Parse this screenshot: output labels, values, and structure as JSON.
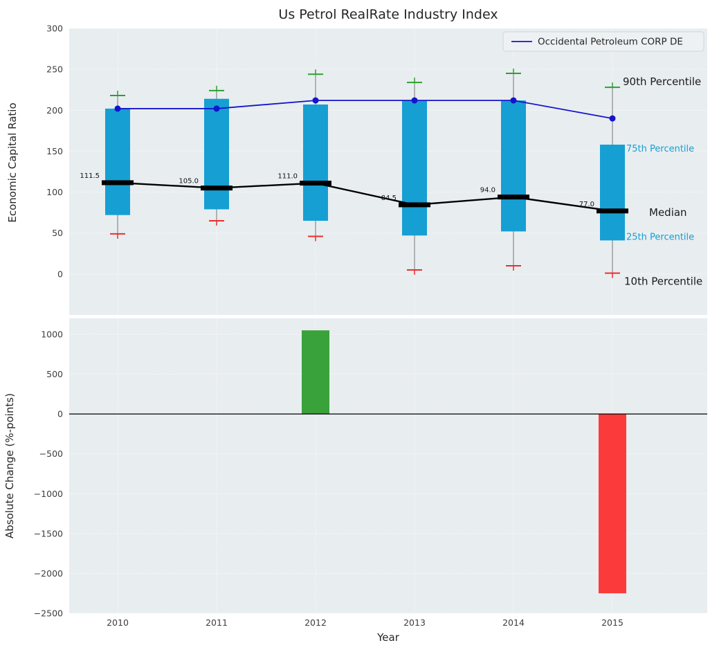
{
  "figure": {
    "panel_background": "#e8edf0",
    "grid_color": "#ffffff",
    "text_color": "#262626"
  },
  "chart_data": [
    {
      "type": "boxplot",
      "title": "Us Petrol RealRate Industry Index",
      "ylabel": "Economic Capital Ratio",
      "ylim": [
        -50,
        300
      ],
      "yticks": [
        300,
        250,
        200,
        150,
        100,
        50,
        0
      ],
      "categories": [
        "2010",
        "2011",
        "2012",
        "2013",
        "2014",
        "2015"
      ],
      "grid": true,
      "legend_position": "upper right",
      "box_color": "#169fd3",
      "whisker_color": "#8a8a8a",
      "cap_top_color": "#2ca02c",
      "cap_bottom_color": "#ee2c2c",
      "median_color": "#000000",
      "boxes": [
        {
          "category": "2010",
          "p10": 49,
          "p25": 72,
          "median": 111.5,
          "p75": 202,
          "p90": 218
        },
        {
          "category": "2011",
          "p10": 65,
          "p25": 79,
          "median": 105.0,
          "p75": 214,
          "p90": 224
        },
        {
          "category": "2012",
          "p10": 46,
          "p25": 65,
          "median": 111.0,
          "p75": 207,
          "p90": 244
        },
        {
          "category": "2013",
          "p10": 5,
          "p25": 47,
          "median": 84.5,
          "p75": 212,
          "p90": 234
        },
        {
          "category": "2014",
          "p10": 10,
          "p25": 52,
          "median": 94.0,
          "p75": 212,
          "p90": 245
        },
        {
          "category": "2015",
          "p10": 1,
          "p25": 41,
          "median": 77.0,
          "p75": 158,
          "p90": 228
        }
      ],
      "series": [
        {
          "name": "Occidental Petroleum CORP DE",
          "color": "#1414cc",
          "values": [
            202,
            202,
            212,
            212,
            212,
            190
          ]
        }
      ],
      "percentile_annotations": [
        {
          "text": "90th Percentile",
          "stat": "p90",
          "color": "#1a1a1a",
          "size": 15
        },
        {
          "text": "75th Percentile",
          "stat": "p75",
          "color": "#169fd3",
          "size": 13
        },
        {
          "text": "Median",
          "stat": "median",
          "color": "#1a1a1a",
          "size": 15
        },
        {
          "text": "25th Percentile",
          "stat": "p25",
          "color": "#169fd3",
          "size": 13
        },
        {
          "text": "10th Percentile",
          "stat": "p10",
          "color": "#1a1a1a",
          "size": 15
        }
      ]
    },
    {
      "type": "bar",
      "ylabel": "Absolute Change (%-points)",
      "xlabel": "Year",
      "ylim": [
        -2500,
        1200
      ],
      "yticks": [
        1000,
        500,
        0,
        -500,
        -1000,
        -1500,
        -2000,
        -2500
      ],
      "categories": [
        "2010",
        "2011",
        "2012",
        "2013",
        "2014",
        "2015"
      ],
      "values": [
        0,
        0,
        1050,
        0,
        0,
        -2250
      ],
      "positive_color": "#3aa23a",
      "negative_color": "#fb3b3b",
      "zero_line_color": "#000000"
    }
  ]
}
